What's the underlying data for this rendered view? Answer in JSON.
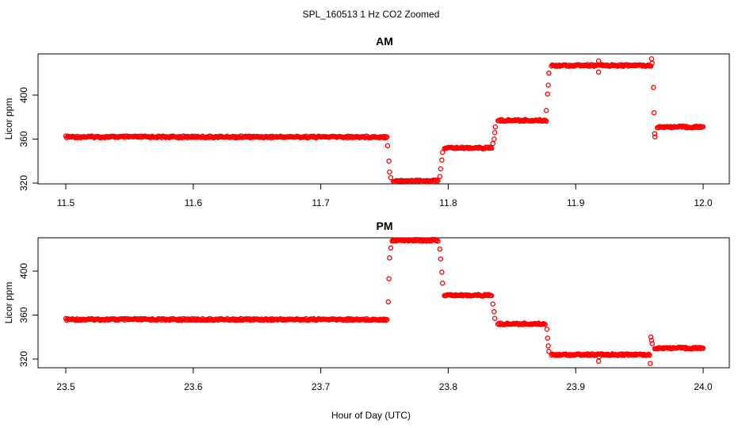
{
  "figure": {
    "title": "SPL_160513  1 Hz CO2 Zoomed",
    "xlabel": "Hour of Day (UTC)"
  },
  "colors": {
    "points": "#ff0000",
    "axes": "#000000"
  },
  "chart_data": [
    {
      "type": "scatter",
      "title": "AM",
      "xlabel": "",
      "ylabel": "Licor ppm",
      "xlim": [
        11.5,
        12.0
      ],
      "ylim": [
        318,
        435
      ],
      "xticks": [
        "11.5",
        "11.6",
        "11.7",
        "11.8",
        "11.9",
        "12.0"
      ],
      "yticks": [
        "320",
        "360",
        "400"
      ],
      "marker": "open-circle",
      "segments": [
        {
          "x": [
            11.5,
            11.752
          ],
          "y": 362
        },
        {
          "x": [
            11.757,
            11.792
          ],
          "y": 322
        },
        {
          "x": [
            11.797,
            11.834
          ],
          "y": 352
        },
        {
          "x": [
            11.839,
            11.877
          ],
          "y": 377
        },
        {
          "x": [
            11.881,
            11.959
          ],
          "y": 427
        },
        {
          "x": [
            11.964,
            12.0
          ],
          "y": 371
        }
      ],
      "transitions": [
        {
          "x": 11.7525,
          "y": 354
        },
        {
          "x": 11.7535,
          "y": 340
        },
        {
          "x": 11.754,
          "y": 330
        },
        {
          "x": 11.755,
          "y": 325
        },
        {
          "x": 11.7935,
          "y": 326
        },
        {
          "x": 11.794,
          "y": 333
        },
        {
          "x": 11.795,
          "y": 341
        },
        {
          "x": 11.7955,
          "y": 348
        },
        {
          "x": 11.835,
          "y": 356
        },
        {
          "x": 11.836,
          "y": 360
        },
        {
          "x": 11.8365,
          "y": 366
        },
        {
          "x": 11.837,
          "y": 371
        },
        {
          "x": 11.877,
          "y": 386
        },
        {
          "x": 11.878,
          "y": 401
        },
        {
          "x": 11.8785,
          "y": 409
        },
        {
          "x": 11.879,
          "y": 420
        },
        {
          "x": 11.918,
          "y": 431
        },
        {
          "x": 11.918,
          "y": 421
        },
        {
          "x": 11.9595,
          "y": 433
        },
        {
          "x": 11.96,
          "y": 429
        },
        {
          "x": 11.961,
          "y": 407
        },
        {
          "x": 11.9615,
          "y": 384
        },
        {
          "x": 11.962,
          "y": 365
        },
        {
          "x": 11.9622,
          "y": 362
        }
      ]
    },
    {
      "type": "scatter",
      "title": "PM",
      "xlabel": "",
      "ylabel": "Licor ppm",
      "xlim": [
        23.5,
        24.0
      ],
      "ylim": [
        311,
        432
      ],
      "xticks": [
        "23.5",
        "23.6",
        "23.7",
        "23.8",
        "23.9",
        "24.0"
      ],
      "yticks": [
        "320",
        "360",
        "400"
      ],
      "marker": "open-circle",
      "segments": [
        {
          "x": [
            23.5,
            23.752
          ],
          "y": 356
        },
        {
          "x": [
            23.756,
            23.792
          ],
          "y": 428
        },
        {
          "x": [
            23.797,
            23.834
          ],
          "y": 378
        },
        {
          "x": [
            23.839,
            23.876
          ],
          "y": 352
        },
        {
          "x": [
            23.881,
            23.958
          ],
          "y": 324
        },
        {
          "x": [
            23.962,
            24.0
          ],
          "y": 330
        }
      ],
      "transitions": [
        {
          "x": 23.753,
          "y": 372
        },
        {
          "x": 23.7535,
          "y": 393
        },
        {
          "x": 23.754,
          "y": 412
        },
        {
          "x": 23.755,
          "y": 421
        },
        {
          "x": 23.7935,
          "y": 420
        },
        {
          "x": 23.794,
          "y": 411
        },
        {
          "x": 23.795,
          "y": 399
        },
        {
          "x": 23.7955,
          "y": 389
        },
        {
          "x": 23.835,
          "y": 370
        },
        {
          "x": 23.836,
          "y": 363
        },
        {
          "x": 23.8365,
          "y": 357
        },
        {
          "x": 23.8775,
          "y": 347
        },
        {
          "x": 23.878,
          "y": 339
        },
        {
          "x": 23.8785,
          "y": 332
        },
        {
          "x": 23.879,
          "y": 327
        },
        {
          "x": 23.918,
          "y": 318
        },
        {
          "x": 23.9185,
          "y": 322
        },
        {
          "x": 23.9585,
          "y": 316
        },
        {
          "x": 23.959,
          "y": 340
        },
        {
          "x": 23.9595,
          "y": 337
        },
        {
          "x": 23.96,
          "y": 334
        }
      ]
    }
  ]
}
